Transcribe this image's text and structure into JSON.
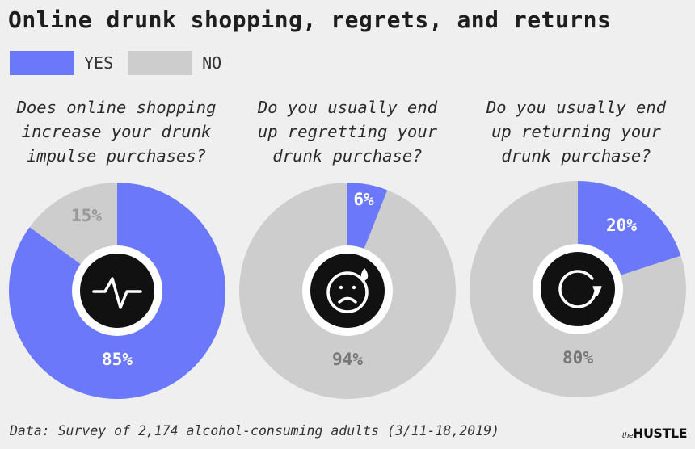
{
  "title": "Online drunk shopping, regrets, and returns",
  "legend": [
    {
      "label": "YES",
      "color": "#6b78fa"
    },
    {
      "label": "NO",
      "color": "#cdcdcd"
    }
  ],
  "colors": {
    "yes": "#6b78fa",
    "no": "#cdcdcd",
    "center": "#111111",
    "ring": "#ffffff"
  },
  "questions": [
    "Does online shopping\nincrease your drunk\nimpulse purchases?",
    "Do you usually end\nup regretting your\ndrunk purchase?",
    "Do you usually end\nup returning your\ndrunk purchase?"
  ],
  "chart_data": [
    {
      "type": "pie",
      "title": "Does online shopping increase your drunk impulse purchases?",
      "labels": [
        "YES",
        "NO"
      ],
      "values": [
        85,
        15
      ],
      "value_labels": [
        "85%",
        "15%"
      ],
      "icon": "pulse-icon"
    },
    {
      "type": "pie",
      "title": "Do you usually end up regretting your drunk purchase?",
      "labels": [
        "YES",
        "NO"
      ],
      "values": [
        6,
        94
      ],
      "value_labels": [
        "6%",
        "94%"
      ],
      "icon": "sad-face-icon"
    },
    {
      "type": "pie",
      "title": "Do you usually end up returning your drunk purchase?",
      "labels": [
        "YES",
        "NO"
      ],
      "values": [
        20,
        80
      ],
      "value_labels": [
        "20%",
        "80%"
      ],
      "icon": "refresh-icon"
    }
  ],
  "footnote": "Data: Survey of 2,174 alcohol-consuming adults (3/11-18,2019)",
  "brand": {
    "prefix": "the",
    "name": "HUSTLE"
  }
}
